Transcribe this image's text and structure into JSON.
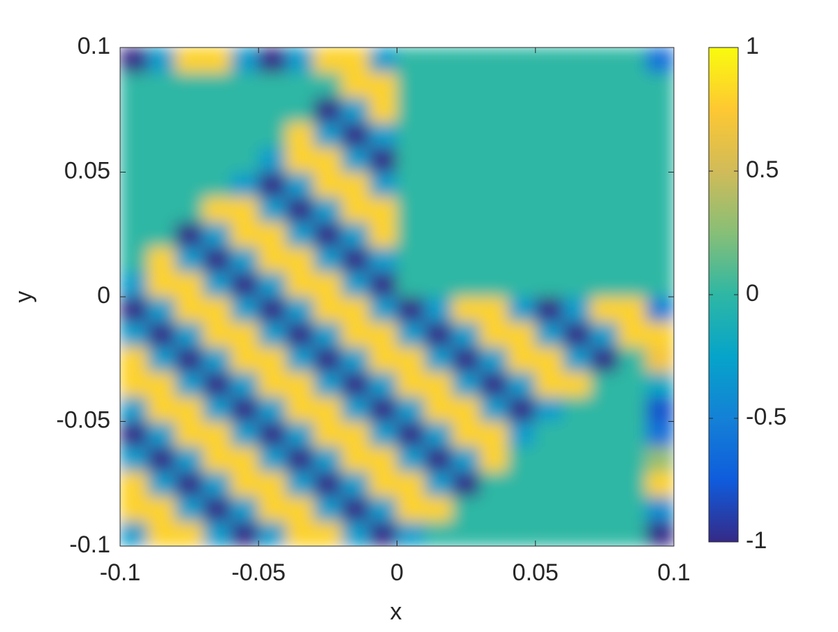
{
  "chart_data": {
    "type": "heatmap",
    "xlabel": "x",
    "ylabel": "y",
    "xlim": [
      -0.1,
      0.1
    ],
    "ylim": [
      -0.1,
      0.1
    ],
    "xticks": [
      -0.1,
      -0.05,
      0,
      0.05,
      0.1
    ],
    "yticks": [
      -0.1,
      -0.05,
      0,
      0.05,
      0.1
    ],
    "x": [
      -0.095,
      -0.085,
      -0.075,
      -0.065,
      -0.055,
      -0.045,
      -0.035,
      -0.025,
      -0.015,
      -0.005,
      0.005,
      0.015,
      0.025,
      0.035,
      0.045,
      0.055,
      0.065,
      0.075,
      0.085,
      0.095
    ],
    "y": [
      -0.095,
      -0.085,
      -0.075,
      -0.065,
      -0.055,
      -0.045,
      -0.035,
      -0.025,
      -0.015,
      -0.005,
      0.005,
      0.015,
      0.025,
      0.035,
      0.045,
      0.055,
      0.065,
      0.075,
      0.085,
      0.095
    ],
    "z": [
      [
        -0.3,
        0.8,
        0.8,
        -0.3,
        -1,
        -0.3,
        0.8,
        0.8,
        -0.3,
        -1,
        -0.3,
        0,
        0,
        0,
        0,
        0,
        0,
        0,
        0,
        -1
      ],
      [
        0.8,
        0.8,
        -0.3,
        -1,
        -0.3,
        0.8,
        0.8,
        -0.3,
        -1,
        -0.3,
        0.8,
        0.8,
        0,
        0,
        0,
        0,
        0,
        0,
        0,
        -0.4
      ],
      [
        0.8,
        -0.3,
        -1,
        -0.3,
        0.8,
        0.8,
        -0.3,
        -1,
        -0.3,
        0.8,
        0.8,
        -0.3,
        -1,
        0,
        0,
        0,
        0,
        0,
        0,
        0.8
      ],
      [
        -0.3,
        -1,
        -0.3,
        0.8,
        0.8,
        -0.3,
        -1,
        -0.3,
        0.8,
        0.8,
        -0.3,
        -1,
        -0.3,
        0.8,
        0,
        0,
        0,
        0,
        0,
        0.3
      ],
      [
        -1,
        -0.3,
        0.8,
        0.8,
        -0.3,
        -1,
        -0.3,
        0.8,
        0.8,
        -0.3,
        -1,
        -0.3,
        0.8,
        0.8,
        -0.3,
        0,
        0,
        0,
        0,
        -0.6
      ],
      [
        -0.3,
        0.8,
        0.8,
        -0.3,
        -1,
        -0.3,
        0.8,
        0.8,
        -0.3,
        -1,
        -0.3,
        0.8,
        0.8,
        -0.3,
        -1,
        -0.3,
        0,
        0,
        0,
        -0.8
      ],
      [
        0.8,
        0.8,
        -0.3,
        -1,
        -0.3,
        0.8,
        0.8,
        -0.3,
        -1,
        -0.3,
        0.8,
        0.8,
        -0.3,
        -1,
        -0.3,
        0.8,
        0.8,
        0,
        0,
        -0.2
      ],
      [
        0.8,
        -0.3,
        -1,
        -0.3,
        0.8,
        0.8,
        -0.3,
        -1,
        -0.3,
        0.8,
        0.8,
        -0.3,
        -1,
        -0.3,
        0.8,
        0.8,
        -0.3,
        -1,
        0,
        0.7
      ],
      [
        -0.3,
        -1,
        -0.3,
        0.8,
        0.8,
        -0.3,
        -1,
        -0.3,
        0.8,
        0.8,
        -0.3,
        -1,
        -0.3,
        0.8,
        0.8,
        -0.3,
        -1,
        -0.3,
        0.8,
        0.8
      ],
      [
        -1,
        -0.3,
        0.8,
        0.8,
        -0.3,
        -1,
        -0.3,
        0.8,
        0.8,
        -0.3,
        -1,
        -0.3,
        0.8,
        0.8,
        -0.3,
        -1,
        -0.3,
        0.8,
        0.8,
        -0.5
      ],
      [
        -0.3,
        0.8,
        0.8,
        -0.3,
        -1,
        -0.3,
        0.8,
        0.8,
        -0.3,
        -1,
        0,
        0,
        0,
        0,
        0,
        0,
        0,
        0,
        0,
        0
      ],
      [
        0,
        0.8,
        -0.3,
        -1,
        -0.3,
        0.8,
        0.8,
        -0.3,
        -1,
        -0.3,
        0,
        0,
        0,
        0,
        0,
        0,
        0,
        0,
        0,
        0
      ],
      [
        0,
        0,
        -1,
        -0.3,
        0.8,
        0.8,
        -0.3,
        -1,
        -0.3,
        0.8,
        0,
        0,
        0,
        0,
        0,
        0,
        0,
        0,
        0,
        0
      ],
      [
        0,
        0,
        0,
        0.8,
        0.8,
        -0.3,
        -1,
        -0.3,
        0.8,
        0.8,
        0,
        0,
        0,
        0,
        0,
        0,
        0,
        0,
        0,
        0
      ],
      [
        0,
        0,
        0,
        0,
        -0.3,
        -1,
        -0.3,
        0.8,
        0.8,
        -0.3,
        0,
        0,
        0,
        0,
        0,
        0,
        0,
        0,
        0,
        0
      ],
      [
        0,
        0,
        0,
        0,
        0,
        -0.3,
        0.8,
        0.8,
        -0.3,
        -1,
        0,
        0,
        0,
        0,
        0,
        0,
        0,
        0,
        0,
        0
      ],
      [
        0,
        0,
        0,
        0,
        0,
        0,
        0.8,
        -0.3,
        -1,
        -0.3,
        0,
        0,
        0,
        0,
        0,
        0,
        0,
        0,
        0,
        0
      ],
      [
        0,
        0,
        0,
        0,
        0,
        0,
        0,
        -1,
        -0.3,
        0.8,
        0,
        0,
        0,
        0,
        0,
        0,
        0,
        0,
        0,
        0
      ],
      [
        0,
        0,
        0,
        0,
        0,
        0,
        0,
        0,
        0.8,
        0.8,
        0,
        0,
        0,
        0,
        0,
        0,
        0,
        0,
        0,
        0
      ],
      [
        -1,
        -0.3,
        0.8,
        0.8,
        -0.3,
        -1,
        -0.3,
        0.8,
        0.8,
        -0.3,
        0,
        0,
        0,
        0,
        0,
        0,
        0,
        0,
        0,
        -0.6
      ]
    ],
    "clim": [
      -1,
      1
    ],
    "cticks": [
      -1,
      -0.5,
      0,
      0.5,
      1
    ],
    "colormap": [
      "#352A87",
      "#0F5CDD",
      "#1481D6",
      "#06A4CA",
      "#2EB7A4",
      "#87BF77",
      "#D1BB59",
      "#FEC832",
      "#F9FB0E"
    ]
  }
}
